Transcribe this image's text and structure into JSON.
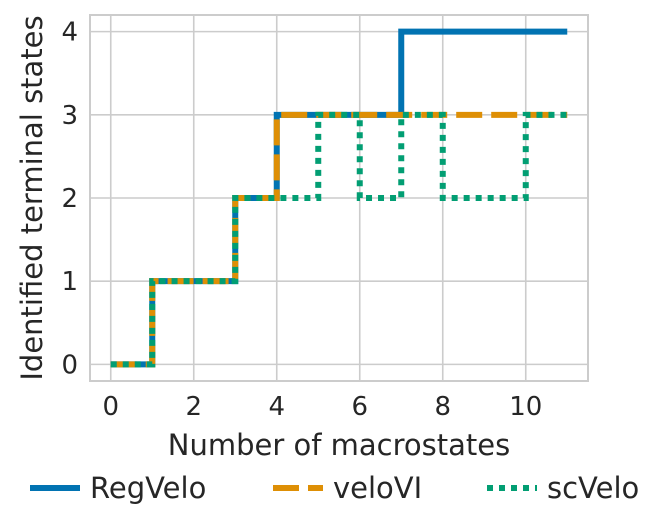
{
  "chart_data": {
    "type": "line",
    "title": "",
    "xlabel": "Number of macrostates",
    "ylabel": "Identified terminal states",
    "xlim": [
      -0.5,
      11.5
    ],
    "ylim": [
      -0.2,
      4.2
    ],
    "xticks": [
      0,
      2,
      4,
      6,
      8,
      10
    ],
    "yticks": [
      0,
      1,
      2,
      3,
      4
    ],
    "grid": true,
    "legend_position": "bottom",
    "x": [
      0,
      1,
      2,
      3,
      4,
      5,
      6,
      7,
      8,
      9,
      10,
      11
    ],
    "series": [
      {
        "name": "RegVelo",
        "color": "#0173b2",
        "style": "solid",
        "values": [
          0,
          1,
          1,
          2,
          3,
          3,
          3,
          4,
          4,
          4,
          4,
          4
        ]
      },
      {
        "name": "veloVI",
        "color": "#de8f05",
        "style": "dashed",
        "values": [
          0,
          1,
          1,
          2,
          3,
          3,
          3,
          3,
          3,
          3,
          3,
          3
        ]
      },
      {
        "name": "scVelo",
        "color": "#029e73",
        "style": "dotted",
        "values": [
          0,
          1,
          1,
          2,
          2,
          3,
          2,
          3,
          2,
          2,
          3,
          3
        ]
      }
    ]
  }
}
